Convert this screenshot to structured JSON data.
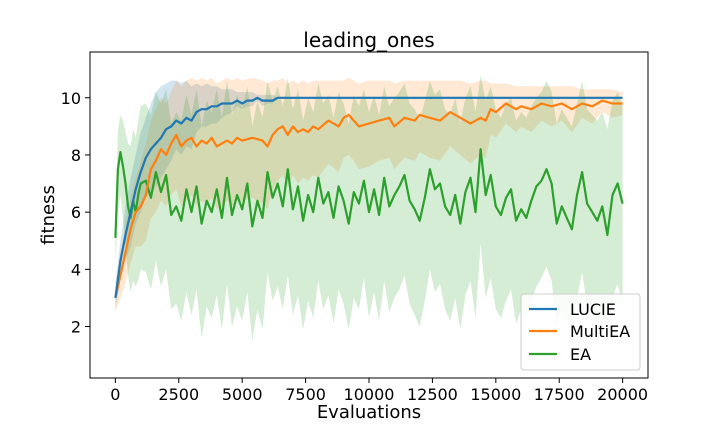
{
  "chart_data": {
    "type": "line",
    "title": "leading_ones",
    "xlabel": "Evaluations",
    "ylabel": "fitness",
    "xlim": [
      -1000,
      21000
    ],
    "ylim": [
      0.2,
      11.6
    ],
    "xticks": [
      0,
      2500,
      5000,
      7500,
      10000,
      12500,
      15000,
      17500,
      20000
    ],
    "yticks": [
      2,
      4,
      6,
      8,
      10
    ],
    "grid": false,
    "legend_position": "lower-right",
    "series": [
      {
        "name": "LUCIE",
        "color": "#1f77b4",
        "band_opacity": 0.2,
        "x": [
          0,
          200,
          400,
          600,
          800,
          1000,
          1200,
          1400,
          1600,
          1800,
          2000,
          2200,
          2400,
          2600,
          2800,
          3000,
          3200,
          3400,
          3600,
          3800,
          4000,
          4200,
          4400,
          4600,
          4800,
          5000,
          5200,
          5400,
          5600,
          5800,
          6000,
          6200,
          6400,
          7000,
          8000,
          10000,
          12000,
          14000,
          16000,
          18000,
          20000
        ],
        "y": [
          3.0,
          4.3,
          5.2,
          6.0,
          6.8,
          7.4,
          7.9,
          8.2,
          8.4,
          8.6,
          8.9,
          9.0,
          9.2,
          9.1,
          9.3,
          9.2,
          9.5,
          9.6,
          9.6,
          9.7,
          9.7,
          9.8,
          9.8,
          9.8,
          9.9,
          9.8,
          9.9,
          9.9,
          10.0,
          9.9,
          9.9,
          9.9,
          10.0,
          10.0,
          10.0,
          10.0,
          10.0,
          10.0,
          10.0,
          10.0,
          10.0
        ],
        "upper": [
          3.5,
          5.0,
          6.2,
          7.2,
          8.0,
          8.8,
          9.3,
          9.8,
          10.2,
          10.4,
          10.5,
          10.6,
          10.6,
          10.5,
          10.6,
          10.4,
          10.5,
          10.4,
          10.5,
          10.4,
          10.4,
          10.3,
          10.3,
          10.3,
          10.2,
          10.2,
          10.2,
          10.2,
          10.1,
          10.1,
          10.1,
          10.1,
          10.0,
          10.0,
          10.0,
          10.0,
          10.0,
          10.0,
          10.0,
          10.0,
          10.0
        ],
        "lower": [
          2.6,
          3.6,
          4.3,
          4.8,
          5.6,
          6.0,
          6.5,
          6.7,
          6.9,
          7.2,
          7.5,
          7.8,
          8.2,
          8.0,
          8.3,
          8.2,
          8.8,
          9.0,
          9.0,
          9.1,
          9.1,
          9.3,
          9.4,
          9.5,
          9.7,
          9.6,
          9.7,
          9.7,
          9.9,
          9.7,
          9.8,
          9.8,
          10.0,
          10.0,
          10.0,
          10.0,
          10.0,
          10.0,
          10.0,
          10.0,
          10.0
        ]
      },
      {
        "name": "MultiEA",
        "color": "#ff7f0e",
        "band_opacity": 0.18,
        "x": [
          0,
          200,
          400,
          600,
          800,
          1000,
          1200,
          1400,
          1600,
          1800,
          2000,
          2200,
          2400,
          2600,
          2800,
          3000,
          3200,
          3400,
          3600,
          3800,
          4000,
          4200,
          4400,
          4600,
          4800,
          5000,
          5400,
          5800,
          6000,
          6200,
          6400,
          6600,
          6800,
          7000,
          7200,
          7400,
          7600,
          7800,
          8000,
          8400,
          8800,
          9000,
          9200,
          9400,
          9600,
          10000,
          10400,
          10800,
          11000,
          11400,
          11800,
          12000,
          12400,
          12800,
          13200,
          13600,
          14000,
          14400,
          14600,
          14800,
          15000,
          15400,
          15800,
          16000,
          16400,
          16800,
          17200,
          17600,
          18000,
          18400,
          18800,
          19200,
          19600,
          20000
        ],
        "y": [
          3.0,
          3.8,
          4.6,
          5.4,
          6.0,
          6.2,
          6.6,
          7.5,
          7.8,
          8.2,
          8.0,
          8.4,
          8.7,
          8.3,
          8.5,
          8.6,
          8.3,
          8.5,
          8.4,
          8.6,
          8.3,
          8.4,
          8.5,
          8.4,
          8.6,
          8.5,
          8.6,
          8.5,
          8.3,
          8.7,
          8.9,
          9.0,
          8.7,
          9.0,
          8.8,
          8.9,
          8.8,
          9.0,
          8.9,
          9.2,
          9.0,
          9.3,
          9.4,
          9.2,
          9.0,
          9.1,
          9.2,
          9.3,
          9.0,
          9.3,
          9.2,
          9.4,
          9.3,
          9.2,
          9.5,
          9.3,
          9.1,
          9.3,
          9.2,
          9.6,
          9.5,
          9.8,
          9.6,
          9.7,
          9.6,
          9.8,
          9.7,
          9.8,
          9.6,
          9.8,
          9.7,
          9.9,
          9.8,
          9.8
        ],
        "upper": [
          3.4,
          4.6,
          5.6,
          6.5,
          7.2,
          7.8,
          8.4,
          9.2,
          9.6,
          10.0,
          9.8,
          10.2,
          10.6,
          10.4,
          10.6,
          10.7,
          10.6,
          10.7,
          10.6,
          10.7,
          10.5,
          10.6,
          10.7,
          10.6,
          10.7,
          10.6,
          10.7,
          10.6,
          10.5,
          10.6,
          10.6,
          10.7,
          10.5,
          10.6,
          10.5,
          10.6,
          10.5,
          10.6,
          10.6,
          10.6,
          10.6,
          10.6,
          10.7,
          10.6,
          10.5,
          10.6,
          10.6,
          10.6,
          10.5,
          10.6,
          10.6,
          10.6,
          10.6,
          10.6,
          10.6,
          10.6,
          10.5,
          10.6,
          10.6,
          10.5,
          10.5,
          10.5,
          10.4,
          10.4,
          10.4,
          10.4,
          10.4,
          10.4,
          10.4,
          10.3,
          10.3,
          10.3,
          10.3,
          10.2
        ],
        "lower": [
          2.5,
          3.0,
          3.5,
          4.2,
          4.8,
          4.8,
          5.0,
          5.8,
          6.0,
          6.4,
          6.2,
          6.6,
          6.8,
          6.2,
          6.4,
          6.6,
          6.2,
          6.4,
          6.3,
          6.5,
          6.1,
          6.2,
          6.4,
          6.2,
          6.4,
          6.4,
          6.5,
          6.3,
          6.1,
          6.8,
          7.1,
          7.3,
          6.9,
          7.3,
          7.0,
          7.2,
          7.1,
          7.3,
          7.2,
          7.7,
          7.4,
          7.9,
          8.0,
          7.8,
          7.5,
          7.6,
          7.8,
          7.9,
          7.5,
          7.9,
          7.8,
          8.1,
          7.9,
          7.8,
          8.3,
          8.0,
          7.7,
          8.0,
          7.9,
          8.7,
          8.6,
          9.1,
          8.8,
          9.0,
          8.8,
          9.2,
          9.0,
          9.2,
          8.8,
          9.3,
          9.1,
          9.5,
          9.3,
          9.4
        ]
      },
      {
        "name": "EA",
        "color": "#2ca02c",
        "band_opacity": 0.2,
        "x": [
          0,
          100,
          200,
          300,
          400,
          500,
          600,
          700,
          800,
          900,
          1000,
          1200,
          1400,
          1600,
          1800,
          2000,
          2200,
          2400,
          2600,
          2800,
          3000,
          3200,
          3400,
          3600,
          3800,
          4000,
          4200,
          4400,
          4600,
          4800,
          5000,
          5200,
          5400,
          5600,
          5800,
          6000,
          6200,
          6400,
          6600,
          6800,
          7000,
          7200,
          7400,
          7600,
          7800,
          8000,
          8200,
          8400,
          8600,
          8800,
          9000,
          9200,
          9400,
          9600,
          9800,
          10000,
          10200,
          10400,
          10600,
          10800,
          11000,
          11200,
          11400,
          11600,
          11800,
          12000,
          12200,
          12400,
          12600,
          12800,
          13000,
          13200,
          13400,
          13600,
          13800,
          14000,
          14200,
          14400,
          14600,
          14800,
          15000,
          15200,
          15400,
          15600,
          15800,
          16000,
          16200,
          16400,
          16600,
          16800,
          17000,
          17200,
          17400,
          17600,
          17800,
          18000,
          18200,
          18400,
          18600,
          18800,
          19000,
          19200,
          19400,
          19600,
          19800,
          20000
        ],
        "y": [
          5.1,
          7.5,
          8.1,
          7.6,
          7.0,
          6.2,
          5.8,
          6.4,
          6.0,
          6.6,
          7.0,
          7.1,
          6.5,
          7.4,
          6.7,
          7.3,
          5.9,
          6.2,
          5.7,
          6.8,
          6.0,
          6.9,
          5.6,
          6.4,
          6.0,
          6.8,
          5.8,
          7.2,
          5.9,
          6.6,
          6.1,
          7.0,
          5.5,
          6.4,
          5.8,
          7.4,
          6.5,
          7.0,
          6.2,
          7.5,
          6.1,
          6.9,
          5.7,
          6.6,
          6.0,
          7.2,
          6.3,
          6.7,
          5.8,
          6.9,
          6.4,
          5.6,
          6.7,
          6.3,
          7.1,
          6.0,
          6.8,
          5.9,
          7.2,
          6.2,
          6.6,
          6.9,
          7.3,
          6.4,
          6.1,
          5.7,
          6.5,
          7.5,
          6.8,
          7.0,
          6.2,
          5.9,
          6.6,
          5.6,
          6.7,
          7.2,
          6.0,
          8.2,
          6.6,
          7.3,
          6.2,
          5.9,
          6.5,
          6.8,
          5.7,
          6.1,
          5.8,
          6.4,
          6.9,
          7.1,
          7.5,
          7.0,
          5.6,
          6.2,
          5.8,
          5.4,
          6.6,
          7.4,
          6.3,
          6.0,
          5.7,
          6.2,
          5.2,
          6.6,
          7.0,
          6.3
        ],
        "upper": [
          5.8,
          8.8,
          9.4,
          9.2,
          8.8,
          8.4,
          8.3,
          8.9,
          8.6,
          9.2,
          9.7,
          9.8,
          9.4,
          10.2,
          9.8,
          10.3,
          9.1,
          9.5,
          9.2,
          10.1,
          9.4,
          10.3,
          9.0,
          9.9,
          9.5,
          10.3,
          9.3,
          10.6,
          9.4,
          10.1,
          9.6,
          10.4,
          9.0,
          9.9,
          9.3,
          10.6,
          9.9,
          10.4,
          9.7,
          10.7,
          9.6,
          10.3,
          9.2,
          10.0,
          9.5,
          10.5,
          9.8,
          10.1,
          9.3,
          10.2,
          9.8,
          9.1,
          10.1,
          9.7,
          10.3,
          9.5,
          10.1,
          9.4,
          10.4,
          9.7,
          10.0,
          10.2,
          10.5,
          9.8,
          9.6,
          9.2,
          9.9,
          10.6,
          10.1,
          10.3,
          9.6,
          9.4,
          10.0,
          9.1,
          10.0,
          10.4,
          9.5,
          10.8,
          9.9,
          10.4,
          9.6,
          9.3,
          9.8,
          10.0,
          9.2,
          9.5,
          9.3,
          9.7,
          10.0,
          10.2,
          10.6,
          10.2,
          9.1,
          9.6,
          9.3,
          9.0,
          9.8,
          10.6,
          9.6,
          9.4,
          9.2,
          9.5,
          8.9,
          9.9,
          10.2,
          9.7
        ],
        "lower": [
          4.2,
          6.0,
          6.6,
          5.8,
          4.8,
          3.8,
          3.2,
          3.6,
          3.4,
          3.6,
          4.0,
          3.9,
          3.3,
          4.3,
          3.4,
          4.0,
          2.6,
          2.8,
          2.2,
          3.2,
          2.4,
          3.3,
          1.6,
          2.7,
          2.3,
          3.1,
          1.9,
          3.5,
          2.0,
          2.7,
          2.2,
          3.2,
          1.5,
          2.6,
          1.9,
          3.9,
          2.9,
          3.4,
          2.6,
          3.8,
          2.4,
          3.1,
          1.9,
          2.9,
          2.3,
          3.6,
          2.6,
          3.1,
          2.1,
          3.3,
          2.8,
          1.9,
          3.0,
          2.6,
          3.7,
          2.3,
          3.2,
          2.2,
          3.6,
          2.5,
          3.0,
          3.3,
          3.8,
          2.8,
          2.4,
          2.0,
          2.9,
          4.0,
          3.2,
          3.5,
          2.6,
          2.2,
          3.0,
          1.9,
          3.1,
          3.6,
          2.3,
          4.9,
          3.0,
          3.7,
          2.6,
          2.3,
          2.9,
          3.3,
          2.1,
          2.6,
          2.2,
          2.9,
          3.4,
          3.7,
          4.1,
          3.6,
          2.0,
          2.6,
          2.2,
          1.8,
          3.0,
          3.9,
          2.7,
          2.4,
          2.1,
          2.7,
          1.6,
          3.0,
          3.5,
          2.7
        ]
      }
    ]
  }
}
